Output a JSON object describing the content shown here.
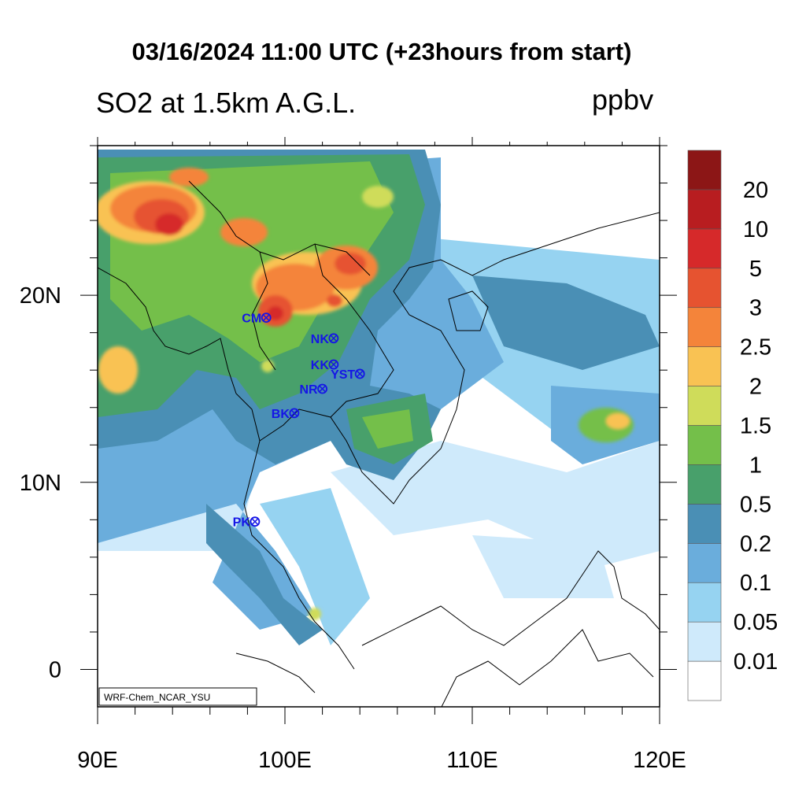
{
  "header": {
    "title": "03/16/2024 11:00 UTC (+23hours from start)",
    "subtitle": "SO2 at 1.5km A.G.L.",
    "units": "ppbv"
  },
  "axes": {
    "lon_range": [
      90,
      120
    ],
    "lat_range": [
      -2,
      28
    ],
    "x_ticks": [
      {
        "value": 90,
        "label": "90E"
      },
      {
        "value": 100,
        "label": "100E"
      },
      {
        "value": 110,
        "label": "110E"
      },
      {
        "value": 120,
        "label": "120E"
      }
    ],
    "y_ticks": [
      {
        "value": 0,
        "label": "0"
      },
      {
        "value": 10,
        "label": "10N"
      },
      {
        "value": 20,
        "label": "20N"
      }
    ]
  },
  "colorbar": {
    "levels": [
      "0.01",
      "0.05",
      "0.1",
      "0.2",
      "0.5",
      "1",
      "1.5",
      "2",
      "2.5",
      "3",
      "5",
      "10",
      "20"
    ],
    "colors": [
      "#ffffff",
      "#cfeafb",
      "#96d3f1",
      "#6aaddc",
      "#4a8fb5",
      "#48a06b",
      "#74bf4a",
      "#cfdc5a",
      "#f9c253",
      "#f4843a",
      "#e65330",
      "#d6292a",
      "#b81d20",
      "#8c1616"
    ]
  },
  "stations": [
    {
      "code": "CM",
      "lon": 99.0,
      "lat": 18.8
    },
    {
      "code": "NK",
      "lon": 102.6,
      "lat": 17.7
    },
    {
      "code": "KK",
      "lon": 102.6,
      "lat": 16.3
    },
    {
      "code": "YST",
      "lon": 104.0,
      "lat": 15.8
    },
    {
      "code": "NR",
      "lon": 102.0,
      "lat": 15.0
    },
    {
      "code": "BK",
      "lon": 100.5,
      "lat": 13.7
    },
    {
      "code": "PK",
      "lon": 98.4,
      "lat": 7.9
    }
  ],
  "credit": "WRF-Chem_NCAR_YSU"
}
